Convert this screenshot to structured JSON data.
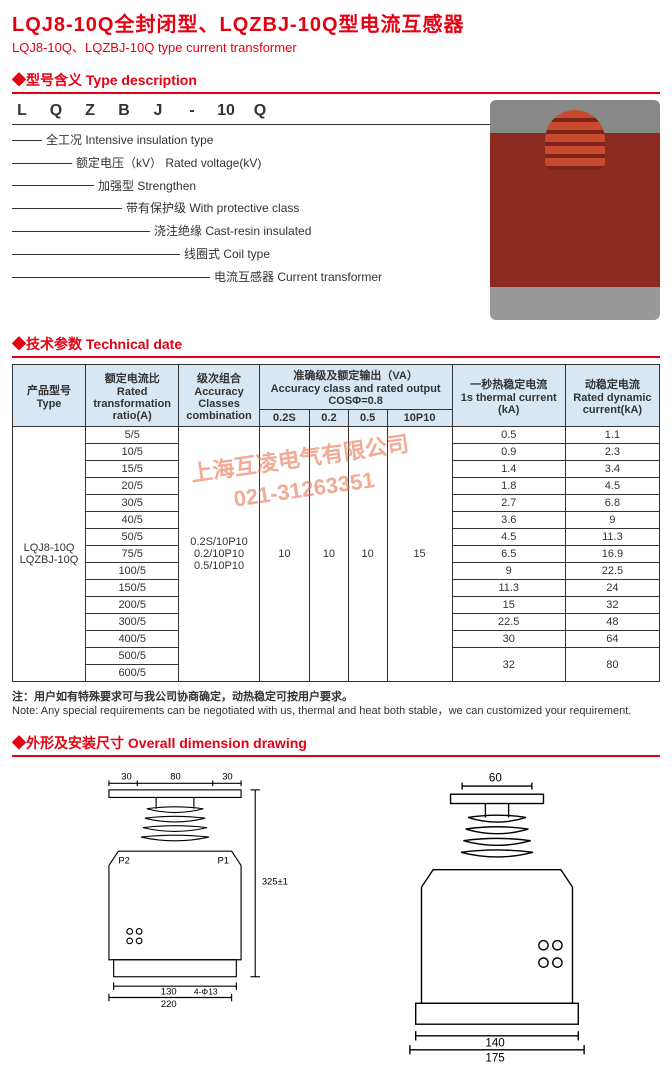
{
  "header": {
    "title_cn": "LQJ8-10Q全封闭型、LQZBJ-10Q型电流互感器",
    "title_en": "LQJ8-10Q、LQZBJ-10Q type current transformer"
  },
  "type_desc": {
    "heading": "◆型号含义 Type description",
    "codes": [
      "L",
      "Q",
      "Z",
      "B",
      "J",
      "-",
      "10",
      "Q"
    ],
    "items": [
      {
        "cn": "全工况",
        "en": "Intensive insulation type"
      },
      {
        "cn": "额定电压（kV）",
        "en": "Rated voltage(kV)"
      },
      {
        "cn": "加强型",
        "en": "Strengthen"
      },
      {
        "cn": "带有保护级",
        "en": "With protective class"
      },
      {
        "cn": "浇注绝缘",
        "en": "Cast-resin insulated"
      },
      {
        "cn": "线圈式",
        "en": "Coil type"
      },
      {
        "cn": "电流互感器",
        "en": "Current transformer"
      }
    ]
  },
  "tech": {
    "heading": "◆技术参数 Technical date",
    "headers": {
      "type": "产品型号\nType",
      "ratio": "额定电流比\nRated\ntransformation\nratio(A)",
      "accuracy": "级次组合\nAccuracy\nClasses\ncombination",
      "output_top": "准确级及额定输出（VA）\nAccuracy class and rated output\nCOSΦ=0.8",
      "thermal": "一秒热稳定电流\n1s thermal current\n(kA)",
      "dynamic": "动稳定电流\nRated dynamic\ncurrent(kA)",
      "sub": [
        "0.2S",
        "0.2",
        "0.5",
        "10P10"
      ]
    },
    "type_label": "LQJ8-10Q\nLQZBJ-10Q",
    "accuracy_combos": "0.2S/10P10\n0.2/10P10\n0.5/10P10",
    "outputs": [
      "10",
      "10",
      "10",
      "15"
    ],
    "rows": [
      {
        "ratio": "5/5",
        "thermal": "0.5",
        "dynamic": "1.1"
      },
      {
        "ratio": "10/5",
        "thermal": "0.9",
        "dynamic": "2.3"
      },
      {
        "ratio": "15/5",
        "thermal": "1.4",
        "dynamic": "3.4"
      },
      {
        "ratio": "20/5",
        "thermal": "1.8",
        "dynamic": "4.5"
      },
      {
        "ratio": "30/5",
        "thermal": "2.7",
        "dynamic": "6.8"
      },
      {
        "ratio": "40/5",
        "thermal": "3.6",
        "dynamic": "9"
      },
      {
        "ratio": "50/5",
        "thermal": "4.5",
        "dynamic": "11.3"
      },
      {
        "ratio": "75/5",
        "thermal": "6.5",
        "dynamic": "16.9"
      },
      {
        "ratio": "100/5",
        "thermal": "9",
        "dynamic": "22.5"
      },
      {
        "ratio": "150/5",
        "thermal": "11.3",
        "dynamic": "24"
      },
      {
        "ratio": "200/5",
        "thermal": "15",
        "dynamic": "32"
      },
      {
        "ratio": "300/5",
        "thermal": "22.5",
        "dynamic": "48"
      },
      {
        "ratio": "400/5",
        "thermal": "30",
        "dynamic": "64"
      },
      {
        "ratio": "500/5",
        "thermal": "32",
        "dynamic": "80"
      },
      {
        "ratio": "600/5",
        "thermal": "32",
        "dynamic": "80"
      }
    ],
    "colors": {
      "header_bg": "#d7e8f4",
      "border": "#333333"
    }
  },
  "watermark": {
    "line1": "上海互凌电气有限公司",
    "line2": "021-31263351"
  },
  "note": {
    "cn": "注：用户如有特殊要求可与我公司协商确定，动热稳定可按用户要求。",
    "en": "Note: Any special requirements can be negotiated with us, thermal and heat both stable，we can customized your requirement."
  },
  "drawing": {
    "heading": "◆外形及安装尺寸 Overall dimension drawing",
    "front": {
      "dims": {
        "top30a": "30",
        "top80": "80",
        "top30b": "30",
        "height": "325±1",
        "p1": "P1",
        "p2": "P2",
        "b130": "130",
        "holes": "4-Φ13",
        "b220": "220"
      },
      "stroke": "#000000"
    },
    "side": {
      "dims": {
        "top60": "60",
        "b140": "140",
        "b175": "175"
      },
      "stroke": "#000000"
    }
  }
}
